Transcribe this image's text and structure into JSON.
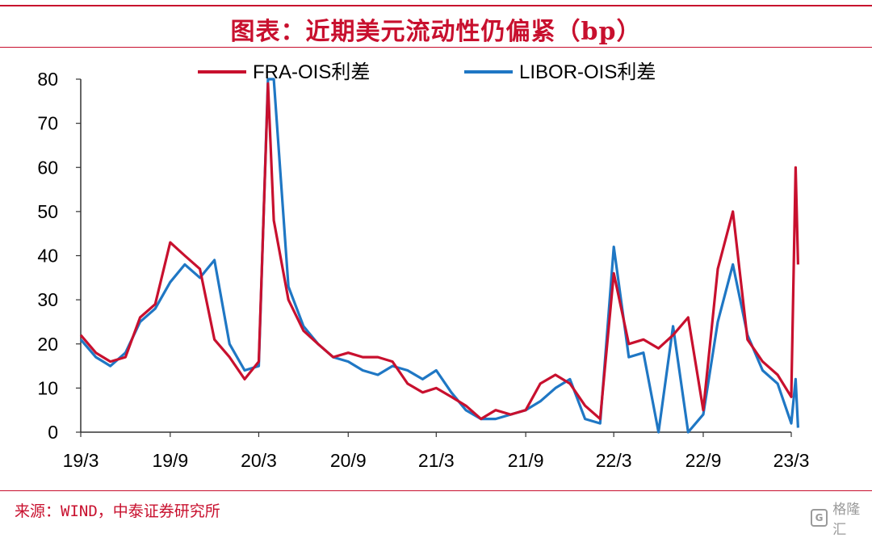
{
  "header": {
    "title": "图表：近期美元流动性仍偏紧（bp）"
  },
  "footer": {
    "source": "来源：WIND，中泰证券研究所",
    "watermark": "格隆汇"
  },
  "colors": {
    "accent": "#c8102e",
    "fra_ois": "#c8102e",
    "libor_ois": "#1f77c4"
  },
  "chart_data": {
    "type": "line",
    "title": "图表：近期美元流动性仍偏紧（bp）",
    "xlabel": "",
    "ylabel": "",
    "ylim": [
      0,
      80
    ],
    "yticks": [
      "0",
      "10",
      "20",
      "30",
      "40",
      "50",
      "60",
      "70",
      "80"
    ],
    "xlim": [
      "2019-03",
      "2023-03"
    ],
    "xticks": [
      "19/3",
      "19/9",
      "20/3",
      "20/9",
      "21/3",
      "21/9",
      "22/3",
      "22/9",
      "23/3"
    ],
    "legend_position": "top",
    "grid": false,
    "series": [
      {
        "name": "FRA-OIS利差",
        "color": "#c8102e",
        "x": [
          "2019-03",
          "2019-04",
          "2019-05",
          "2019-06",
          "2019-07",
          "2019-08",
          "2019-09",
          "2019-10",
          "2019-11",
          "2019-12",
          "2020-01",
          "2020-02",
          "2020-03",
          "2020-03-20",
          "2020-04",
          "2020-05",
          "2020-06",
          "2020-07",
          "2020-08",
          "2020-09",
          "2020-10",
          "2020-11",
          "2020-12",
          "2021-01",
          "2021-02",
          "2021-03",
          "2021-04",
          "2021-05",
          "2021-06",
          "2021-07",
          "2021-08",
          "2021-09",
          "2021-10",
          "2021-11",
          "2021-12",
          "2022-01",
          "2022-02",
          "2022-03",
          "2022-04",
          "2022-05",
          "2022-06",
          "2022-07",
          "2022-08",
          "2022-09",
          "2022-10",
          "2022-11",
          "2022-12",
          "2023-01",
          "2023-02",
          "2023-03",
          "2023-03-10",
          "2023-03-15"
        ],
        "values": [
          22,
          18,
          16,
          17,
          26,
          29,
          43,
          40,
          37,
          21,
          17,
          12,
          16,
          79,
          48,
          30,
          23,
          20,
          17,
          18,
          17,
          17,
          16,
          11,
          9,
          10,
          8,
          6,
          3,
          5,
          4,
          5,
          11,
          13,
          11,
          6,
          3,
          36,
          20,
          21,
          19,
          22,
          26,
          5,
          37,
          50,
          21,
          16,
          13,
          8,
          60,
          38
        ]
      },
      {
        "name": "LIBOR-OIS利差",
        "color": "#1f77c4",
        "x": [
          "2019-03",
          "2019-04",
          "2019-05",
          "2019-06",
          "2019-07",
          "2019-08",
          "2019-09",
          "2019-10",
          "2019-11",
          "2019-12",
          "2020-01",
          "2020-02",
          "2020-03",
          "2020-03-20",
          "2020-04",
          "2020-05",
          "2020-06",
          "2020-07",
          "2020-08",
          "2020-09",
          "2020-10",
          "2020-11",
          "2020-12",
          "2021-01",
          "2021-02",
          "2021-03",
          "2021-04",
          "2021-05",
          "2021-06",
          "2021-07",
          "2021-08",
          "2021-09",
          "2021-10",
          "2021-11",
          "2021-12",
          "2022-01",
          "2022-02",
          "2022-03",
          "2022-04",
          "2022-05",
          "2022-06",
          "2022-07",
          "2022-08",
          "2022-09",
          "2022-10",
          "2022-11",
          "2022-12",
          "2023-01",
          "2023-02",
          "2023-03",
          "2023-03-10",
          "2023-03-15"
        ],
        "values": [
          21,
          17,
          15,
          18,
          25,
          28,
          34,
          38,
          35,
          39,
          20,
          14,
          15,
          80,
          80,
          33,
          24,
          20,
          17,
          16,
          14,
          13,
          15,
          14,
          12,
          14,
          9,
          5,
          3,
          3,
          4,
          5,
          7,
          10,
          12,
          3,
          2,
          42,
          17,
          18,
          0,
          24,
          0,
          4,
          25,
          38,
          22,
          14,
          11,
          2,
          12,
          1
        ]
      }
    ]
  }
}
